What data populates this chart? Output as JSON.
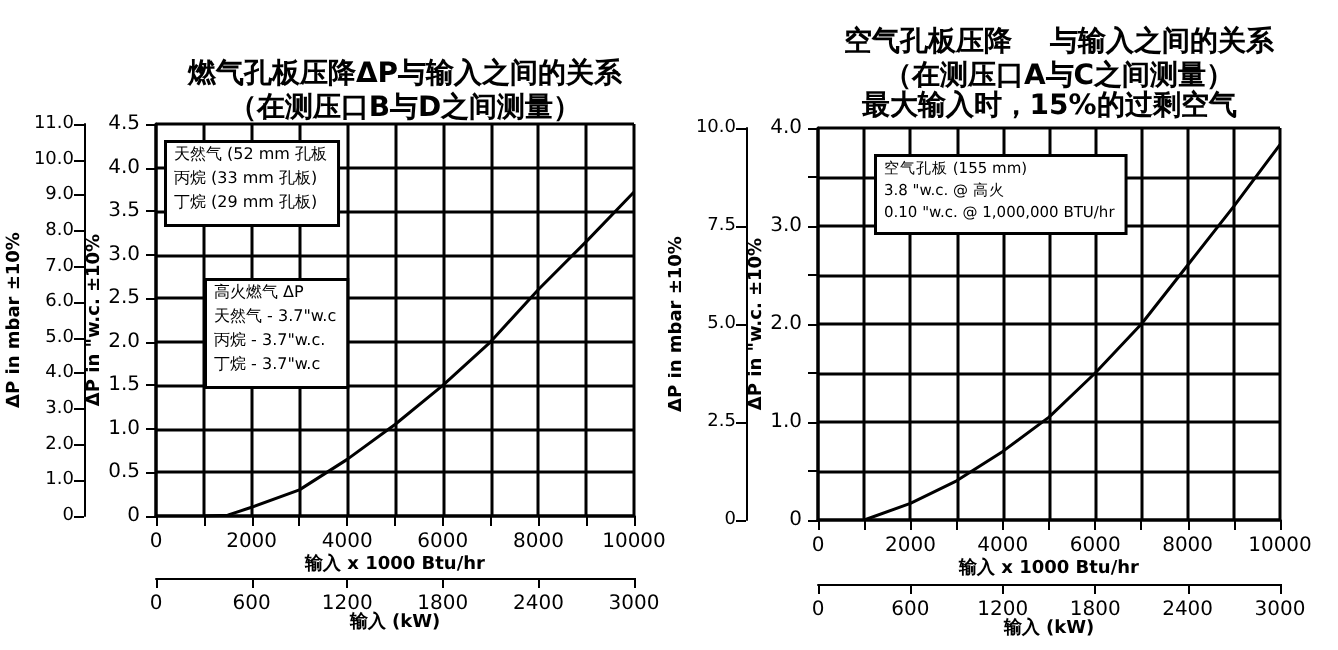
{
  "chart_data": [
    {
      "type": "line",
      "title": "燃气孔板压降ΔP与输入之间的关系",
      "subtitle": "（在测压口B与D之间测量）",
      "xlabel": "输入 x 1000 Btu/hr",
      "x2label": "输入 (kW)",
      "ylabel": "ΔP in \"w.c. ±10%",
      "y2label": "ΔP in mbar ±10%",
      "x": [
        1000,
        1500,
        2000,
        3000,
        4000,
        5000,
        6000,
        7000,
        8000,
        9000,
        10000
      ],
      "series": [
        {
          "color": "#000000",
          "values": [
            0,
            0.01,
            0.1,
            0.3,
            0.65,
            1.05,
            1.5,
            2.0,
            2.6,
            3.15,
            3.72
          ]
        }
      ],
      "xlim": [
        0,
        10000
      ],
      "xticks": [
        0,
        {
          "value": 1000,
          "label": null
        },
        2000,
        {
          "value": 3000,
          "label": null
        },
        4000,
        {
          "value": 5000,
          "label": null
        },
        6000,
        {
          "value": 7000,
          "label": null
        },
        8000,
        {
          "value": 9000,
          "label": null
        },
        10000
      ],
      "x2lim": [
        0,
        3000
      ],
      "x2ticks": [
        0,
        600,
        1200,
        1800,
        2400,
        3000
      ],
      "ylim": [
        0,
        4.5
      ],
      "yticks": [
        0,
        0.5,
        {
          "value": 1,
          "label": "1.0"
        },
        1.5,
        {
          "value": 2,
          "label": "2.0"
        },
        2.5,
        {
          "value": 3,
          "label": "3.0"
        },
        3.5,
        {
          "value": 4,
          "label": "4.0"
        },
        4.5
      ],
      "y2lim": [
        0,
        11
      ],
      "y2ticks": [
        0,
        {
          "value": 1,
          "label": "1.0"
        },
        {
          "value": 2,
          "label": "2.0"
        },
        {
          "value": 3,
          "label": "3.0"
        },
        {
          "value": 4,
          "label": "4.0"
        },
        {
          "value": 5,
          "label": "5.0"
        },
        {
          "value": 6,
          "label": "6.0"
        },
        {
          "value": 7,
          "label": "7.0"
        },
        {
          "value": 8,
          "label": "8.0"
        },
        {
          "value": 9,
          "label": "9.0"
        },
        {
          "value": 10,
          "label": "10.0"
        },
        {
          "value": 11,
          "label": "11.0"
        }
      ],
      "grid": true,
      "marker": "none",
      "line_style": "solid",
      "annotations": [
        "天然气 (52 mm 孔板",
        "丙烷 (33 mm 孔板)",
        "丁烷 (29 mm 孔板)",
        "高火燃气 ΔP",
        "天然气 - 3.7\"w.c",
        "丙烷 - 3.7\"w.c.",
        "丁烷 - 3.7\"w.c"
      ]
    },
    {
      "type": "line",
      "title": "空气孔板压降    与输入之间的关系",
      "subtitle": "（在测压口A与C之间测量）",
      "xlabel": "输入 x 1000 Btu/hr",
      "x2label": "输入 (kW)",
      "ylabel": "ΔP in \"w.c. ±10%",
      "y2label": "ΔP in mbar ±10%",
      "x": [
        1000,
        2000,
        3000,
        4000,
        5000,
        6000,
        7000,
        8000,
        9000,
        10000
      ],
      "series": [
        {
          "color": "#000000",
          "values": [
            0,
            0.17,
            0.4,
            0.7,
            1.05,
            1.5,
            2.0,
            2.6,
            3.2,
            3.83
          ]
        }
      ],
      "xlim": [
        0,
        10000
      ],
      "xticks": [
        0,
        {
          "value": 1000,
          "label": null
        },
        2000,
        {
          "value": 3000,
          "label": null
        },
        4000,
        {
          "value": 5000,
          "label": null
        },
        6000,
        {
          "value": 7000,
          "label": null
        },
        8000,
        {
          "value": 9000,
          "label": null
        },
        10000
      ],
      "x2lim": [
        0,
        3000
      ],
      "x2ticks": [
        0,
        600,
        1200,
        1800,
        2400,
        3000
      ],
      "ylim": [
        0,
        4
      ],
      "yticks": [
        0,
        {
          "value": 0.5,
          "label": null
        },
        {
          "value": 1,
          "label": "1.0"
        },
        {
          "value": 1.5,
          "label": null
        },
        {
          "value": 2,
          "label": "2.0"
        },
        {
          "value": 2.5,
          "label": null
        },
        {
          "value": 3,
          "label": "3.0"
        },
        {
          "value": 3.5,
          "label": null
        },
        {
          "value": 4,
          "label": "4.0"
        }
      ],
      "y2lim": [
        0,
        10
      ],
      "y2ticks": [
        0,
        2.5,
        {
          "value": 5,
          "label": "5.0"
        },
        7.5,
        {
          "value": 10,
          "label": "10.0"
        }
      ],
      "grid": true,
      "marker": "none",
      "line_style": "solid",
      "annotations": [
        "最大输入时，15%的过剩空气",
        "空气孔板 (155 mm)",
        "3.8 \"w.c. @ 高火",
        "0.10 \"w.c. @ 1,000,000 BTU/hr"
      ]
    }
  ]
}
